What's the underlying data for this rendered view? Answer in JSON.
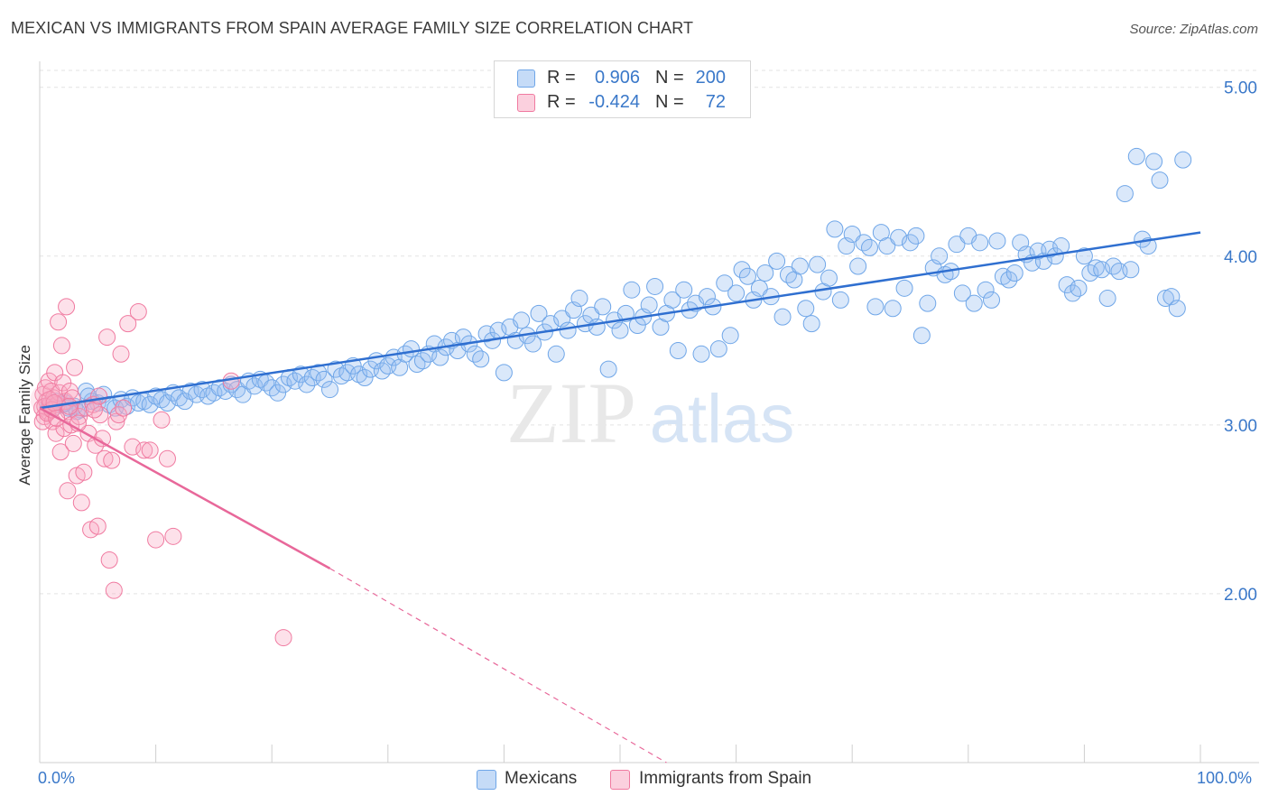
{
  "title": "MEXICAN VS IMMIGRANTS FROM SPAIN AVERAGE FAMILY SIZE CORRELATION CHART",
  "source": "Source: ZipAtlas.com",
  "watermark": {
    "zip": "ZIP",
    "atlas": "atlas"
  },
  "colors": {
    "blue": "#6fa6e8",
    "blue_fill": "rgba(150,190,240,0.35)",
    "blue_line": "#2f6fd0",
    "pink": "#f07aa0",
    "pink_fill": "rgba(248,170,195,0.35)",
    "pink_line": "#e8689a",
    "axis_label": "#3a78c9",
    "grid": "#e3e3e3"
  },
  "legend_top": {
    "rows": [
      {
        "r_label": "R =",
        "r_value": "0.906",
        "n_label": "N =",
        "n_value": "200"
      },
      {
        "r_label": "R =",
        "r_value": "-0.424",
        "n_label": "N =",
        "n_value": "72"
      }
    ]
  },
  "legend_bottom": {
    "items": [
      "Mexicans",
      "Immigrants from Spain"
    ]
  },
  "chart_data": {
    "type": "scatter",
    "title": "MEXICAN VS IMMIGRANTS FROM SPAIN AVERAGE FAMILY SIZE CORRELATION CHART",
    "xlabel": "",
    "ylabel": "Average Family Size",
    "x_tick_labels": [
      "0.0%",
      "100.0%"
    ],
    "y_tick_labels": [
      "2.00",
      "3.00",
      "4.00",
      "5.00"
    ],
    "y_ticks": [
      2.0,
      3.0,
      4.0,
      5.0
    ],
    "xlim": [
      0,
      100
    ],
    "ylim": [
      1.0,
      5.1
    ],
    "grid": "horizontal dashed",
    "series": [
      {
        "name": "Mexicans",
        "r": 0.906,
        "n": 200,
        "trend": {
          "x0": 0,
          "y0": 3.1,
          "x1": 100,
          "y1": 4.14
        },
        "points": [
          [
            1.5,
            3.14
          ],
          [
            2.0,
            3.12
          ],
          [
            2.5,
            3.1
          ],
          [
            3.0,
            3.11
          ],
          [
            3.5,
            3.09
          ],
          [
            4.0,
            3.2
          ],
          [
            4.5,
            3.14
          ],
          [
            5.0,
            3.13
          ],
          [
            5.5,
            3.18
          ],
          [
            6.0,
            3.12
          ],
          [
            6.5,
            3.1
          ],
          [
            7.0,
            3.15
          ],
          [
            7.5,
            3.11
          ],
          [
            8.0,
            3.16
          ],
          [
            8.5,
            3.13
          ],
          [
            9.0,
            3.14
          ],
          [
            9.5,
            3.12
          ],
          [
            10.0,
            3.17
          ],
          [
            10.5,
            3.15
          ],
          [
            11.0,
            3.13
          ],
          [
            11.5,
            3.19
          ],
          [
            12.0,
            3.16
          ],
          [
            12.5,
            3.14
          ],
          [
            13.0,
            3.2
          ],
          [
            13.5,
            3.18
          ],
          [
            14.0,
            3.21
          ],
          [
            14.5,
            3.17
          ],
          [
            15.0,
            3.19
          ],
          [
            15.5,
            3.22
          ],
          [
            16.0,
            3.2
          ],
          [
            16.5,
            3.24
          ],
          [
            17.0,
            3.21
          ],
          [
            17.5,
            3.18
          ],
          [
            18.0,
            3.26
          ],
          [
            18.5,
            3.23
          ],
          [
            19.0,
            3.27
          ],
          [
            19.5,
            3.25
          ],
          [
            20.0,
            3.22
          ],
          [
            20.5,
            3.19
          ],
          [
            21.0,
            3.24
          ],
          [
            21.5,
            3.28
          ],
          [
            22.0,
            3.26
          ],
          [
            22.5,
            3.3
          ],
          [
            23.0,
            3.24
          ],
          [
            23.5,
            3.28
          ],
          [
            24.0,
            3.31
          ],
          [
            24.5,
            3.27
          ],
          [
            25.0,
            3.21
          ],
          [
            25.5,
            3.33
          ],
          [
            26.0,
            3.29
          ],
          [
            26.5,
            3.31
          ],
          [
            27.0,
            3.35
          ],
          [
            27.5,
            3.3
          ],
          [
            28.0,
            3.28
          ],
          [
            28.5,
            3.33
          ],
          [
            29.0,
            3.38
          ],
          [
            29.5,
            3.32
          ],
          [
            30.0,
            3.35
          ],
          [
            30.5,
            3.4
          ],
          [
            31.0,
            3.34
          ],
          [
            31.5,
            3.42
          ],
          [
            32.0,
            3.45
          ],
          [
            32.5,
            3.36
          ],
          [
            33.0,
            3.38
          ],
          [
            33.5,
            3.42
          ],
          [
            34.0,
            3.48
          ],
          [
            34.5,
            3.4
          ],
          [
            35.0,
            3.46
          ],
          [
            35.5,
            3.5
          ],
          [
            36.0,
            3.44
          ],
          [
            36.5,
            3.52
          ],
          [
            37.0,
            3.48
          ],
          [
            37.5,
            3.42
          ],
          [
            38.0,
            3.39
          ],
          [
            38.5,
            3.54
          ],
          [
            39.0,
            3.5
          ],
          [
            39.5,
            3.56
          ],
          [
            40.0,
            3.31
          ],
          [
            40.5,
            3.58
          ],
          [
            41.0,
            3.5
          ],
          [
            41.5,
            3.62
          ],
          [
            42.0,
            3.53
          ],
          [
            42.5,
            3.48
          ],
          [
            43.0,
            3.66
          ],
          [
            43.5,
            3.55
          ],
          [
            44.0,
            3.6
          ],
          [
            44.5,
            3.42
          ],
          [
            45.0,
            3.63
          ],
          [
            45.5,
            3.56
          ],
          [
            46.0,
            3.68
          ],
          [
            46.5,
            3.75
          ],
          [
            47.0,
            3.6
          ],
          [
            47.5,
            3.65
          ],
          [
            48.0,
            3.58
          ],
          [
            48.5,
            3.7
          ],
          [
            49.0,
            3.33
          ],
          [
            49.5,
            3.62
          ],
          [
            50.0,
            3.56
          ],
          [
            50.5,
            3.66
          ],
          [
            51.0,
            3.8
          ],
          [
            51.5,
            3.59
          ],
          [
            52.0,
            3.64
          ],
          [
            52.5,
            3.71
          ],
          [
            53.0,
            3.82
          ],
          [
            53.5,
            3.58
          ],
          [
            54.0,
            3.66
          ],
          [
            54.5,
            3.74
          ],
          [
            55.0,
            3.44
          ],
          [
            55.5,
            3.8
          ],
          [
            56.0,
            3.68
          ],
          [
            56.5,
            3.72
          ],
          [
            57.0,
            3.42
          ],
          [
            57.5,
            3.76
          ],
          [
            58.0,
            3.7
          ],
          [
            58.5,
            3.45
          ],
          [
            59.0,
            3.84
          ],
          [
            59.5,
            3.53
          ],
          [
            60.0,
            3.78
          ],
          [
            60.5,
            3.92
          ],
          [
            61.0,
            3.88
          ],
          [
            61.5,
            3.74
          ],
          [
            62.0,
            3.81
          ],
          [
            62.5,
            3.9
          ],
          [
            63.0,
            3.76
          ],
          [
            63.5,
            3.97
          ],
          [
            64.0,
            3.64
          ],
          [
            64.5,
            3.89
          ],
          [
            65.0,
            3.86
          ],
          [
            65.5,
            3.94
          ],
          [
            66.0,
            3.69
          ],
          [
            66.5,
            3.6
          ],
          [
            67.0,
            3.95
          ],
          [
            67.5,
            3.79
          ],
          [
            68.0,
            3.87
          ],
          [
            68.5,
            4.16
          ],
          [
            69.0,
            3.74
          ],
          [
            69.5,
            4.06
          ],
          [
            70.0,
            4.13
          ],
          [
            70.5,
            3.94
          ],
          [
            71.0,
            4.08
          ],
          [
            71.5,
            4.05
          ],
          [
            72.0,
            3.7
          ],
          [
            72.5,
            4.14
          ],
          [
            73.0,
            4.06
          ],
          [
            73.5,
            3.69
          ],
          [
            74.0,
            4.11
          ],
          [
            74.5,
            3.81
          ],
          [
            75.0,
            4.08
          ],
          [
            75.5,
            4.12
          ],
          [
            76.0,
            3.53
          ],
          [
            76.5,
            3.72
          ],
          [
            77.0,
            3.93
          ],
          [
            77.5,
            4.0
          ],
          [
            78.0,
            3.89
          ],
          [
            78.5,
            3.91
          ],
          [
            79.0,
            4.07
          ],
          [
            79.5,
            3.78
          ],
          [
            80.0,
            4.12
          ],
          [
            80.5,
            3.72
          ],
          [
            81.0,
            4.08
          ],
          [
            81.5,
            3.8
          ],
          [
            82.0,
            3.74
          ],
          [
            82.5,
            4.09
          ],
          [
            83.0,
            3.88
          ],
          [
            83.5,
            3.86
          ],
          [
            84.0,
            3.9
          ],
          [
            84.5,
            4.08
          ],
          [
            85.0,
            4.01
          ],
          [
            85.5,
            3.96
          ],
          [
            86.0,
            4.03
          ],
          [
            86.5,
            3.97
          ],
          [
            87.0,
            4.04
          ],
          [
            87.5,
            4.0
          ],
          [
            88.0,
            4.06
          ],
          [
            88.5,
            3.83
          ],
          [
            89.0,
            3.78
          ],
          [
            89.5,
            3.81
          ],
          [
            90.0,
            4.0
          ],
          [
            90.5,
            3.9
          ],
          [
            91.0,
            3.93
          ],
          [
            91.5,
            3.92
          ],
          [
            92.0,
            3.75
          ],
          [
            92.5,
            3.94
          ],
          [
            93.0,
            3.91
          ],
          [
            93.5,
            4.37
          ],
          [
            94.0,
            3.92
          ],
          [
            94.5,
            4.59
          ],
          [
            95.0,
            4.1
          ],
          [
            95.5,
            4.06
          ],
          [
            96.0,
            4.56
          ],
          [
            96.5,
            4.45
          ],
          [
            97.0,
            3.75
          ],
          [
            97.5,
            3.76
          ],
          [
            98.0,
            3.69
          ],
          [
            98.5,
            4.57
          ],
          [
            0.8,
            3.12
          ],
          [
            1.2,
            3.1
          ],
          [
            2.2,
            3.13
          ],
          [
            3.2,
            3.08
          ],
          [
            4.2,
            3.17
          ]
        ]
      },
      {
        "name": "Immigrants from Spain",
        "r": -0.424,
        "n": 72,
        "trend": {
          "x0": 0,
          "y0": 3.1,
          "x1": 25,
          "y1": 2.15,
          "dash_to_x": 54,
          "dash_to_y": 1.0
        },
        "points": [
          [
            0.2,
            3.1
          ],
          [
            0.3,
            3.18
          ],
          [
            0.4,
            3.05
          ],
          [
            0.5,
            3.22
          ],
          [
            0.6,
            3.14
          ],
          [
            0.7,
            3.08
          ],
          [
            0.8,
            3.26
          ],
          [
            0.9,
            3.12
          ],
          [
            1.0,
            3.2
          ],
          [
            1.1,
            3.02
          ],
          [
            1.2,
            3.16
          ],
          [
            1.3,
            3.31
          ],
          [
            1.4,
            2.95
          ],
          [
            1.5,
            3.12
          ],
          [
            1.6,
            3.61
          ],
          [
            1.7,
            3.19
          ],
          [
            1.8,
            2.84
          ],
          [
            1.9,
            3.47
          ],
          [
            2.0,
            3.25
          ],
          [
            2.1,
            2.98
          ],
          [
            2.2,
            3.14
          ],
          [
            2.3,
            3.7
          ],
          [
            2.4,
            2.61
          ],
          [
            2.5,
            3.08
          ],
          [
            2.6,
            3.2
          ],
          [
            2.7,
            3.0
          ],
          [
            2.8,
            3.16
          ],
          [
            2.9,
            2.89
          ],
          [
            3.0,
            3.34
          ],
          [
            3.2,
            2.7
          ],
          [
            3.4,
            3.05
          ],
          [
            3.6,
            2.54
          ],
          [
            3.8,
            2.72
          ],
          [
            4.0,
            3.1
          ],
          [
            4.2,
            2.95
          ],
          [
            4.4,
            2.38
          ],
          [
            4.6,
            3.12
          ],
          [
            4.8,
            2.88
          ],
          [
            5.0,
            2.4
          ],
          [
            5.2,
            3.06
          ],
          [
            5.4,
            2.92
          ],
          [
            5.6,
            2.8
          ],
          [
            5.8,
            3.52
          ],
          [
            6.0,
            2.2
          ],
          [
            6.2,
            2.79
          ],
          [
            6.4,
            2.02
          ],
          [
            6.6,
            3.02
          ],
          [
            6.8,
            3.06
          ],
          [
            7.0,
            3.42
          ],
          [
            7.2,
            3.1
          ],
          [
            7.6,
            3.6
          ],
          [
            8.0,
            2.87
          ],
          [
            8.5,
            3.67
          ],
          [
            9.0,
            2.85
          ],
          [
            9.5,
            2.85
          ],
          [
            10.0,
            2.32
          ],
          [
            10.5,
            3.03
          ],
          [
            11.0,
            2.8
          ],
          [
            11.5,
            2.34
          ],
          [
            16.5,
            3.26
          ],
          [
            21.0,
            1.74
          ],
          [
            0.25,
            3.02
          ],
          [
            0.45,
            3.11
          ],
          [
            0.65,
            3.07
          ],
          [
            0.85,
            3.15
          ],
          [
            1.05,
            3.09
          ],
          [
            1.25,
            3.13
          ],
          [
            1.45,
            3.04
          ],
          [
            2.55,
            3.11
          ],
          [
            3.3,
            3.01
          ],
          [
            4.7,
            3.09
          ],
          [
            5.1,
            3.17
          ]
        ]
      }
    ]
  }
}
